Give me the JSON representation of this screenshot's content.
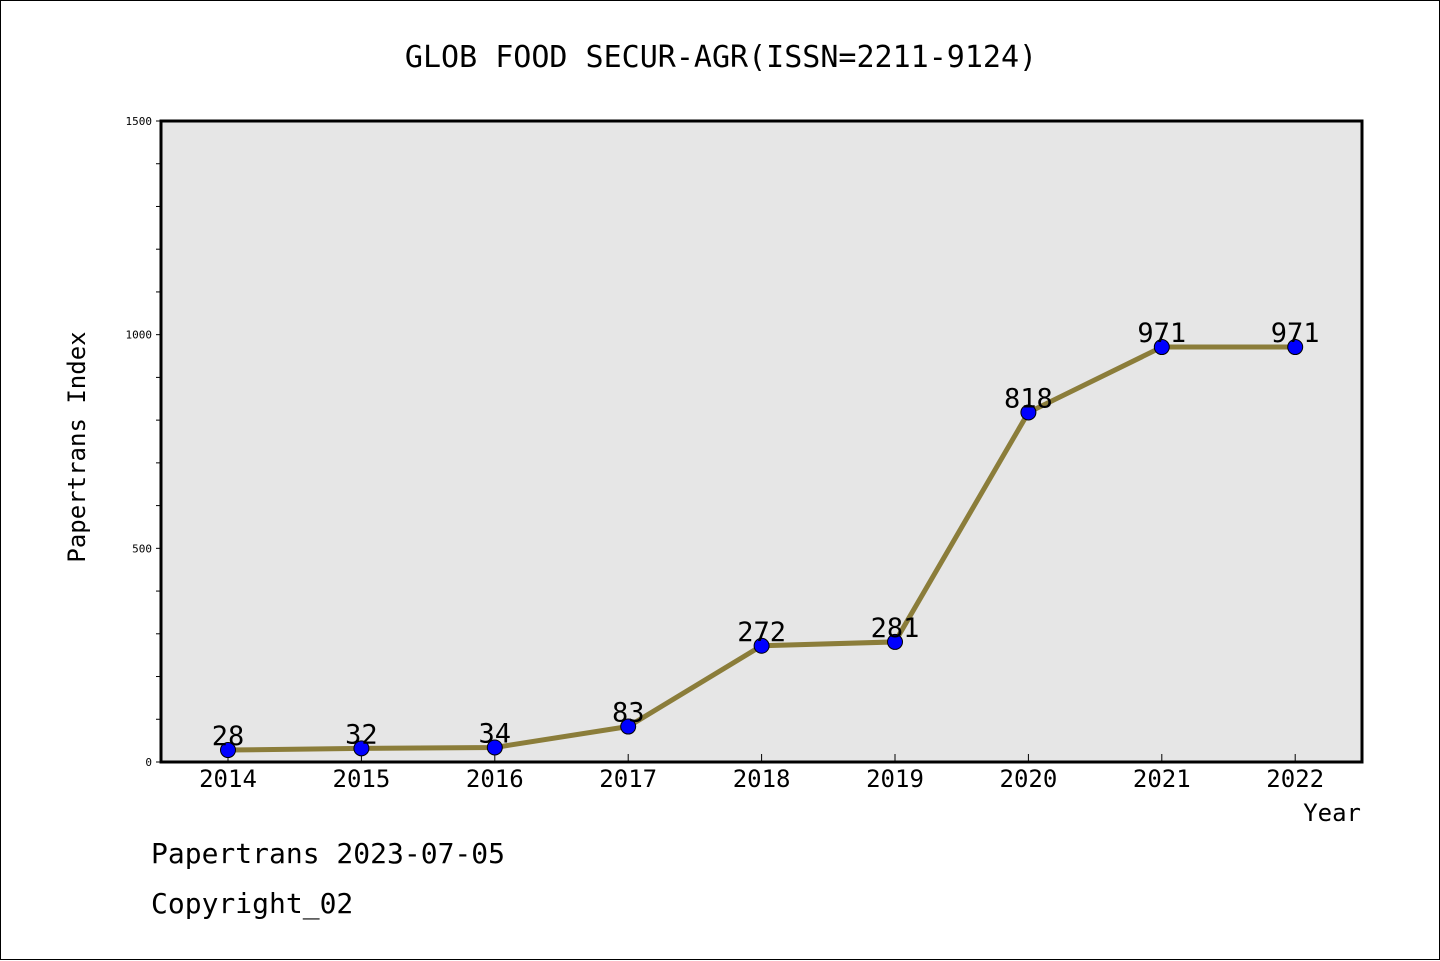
{
  "chart_data": {
    "type": "line",
    "title": "GLOB FOOD SECUR-AGR(ISSN=2211-9124)",
    "xlabel": "Year",
    "ylabel": "Papertrans Index",
    "categories": [
      "2014",
      "2015",
      "2016",
      "2017",
      "2018",
      "2019",
      "2020",
      "2021",
      "2022"
    ],
    "series": [
      {
        "values": [
          28,
          32,
          34,
          83,
          272,
          281,
          818,
          971,
          971
        ]
      }
    ],
    "ylim": [
      0,
      1500
    ],
    "yticks": [
      0,
      500,
      1000,
      1500
    ],
    "grid": false,
    "colors": {
      "line": "#8b7d3a",
      "marker": "#0000ff",
      "plot_bg": "#e6e6e6"
    },
    "data_labels": true
  },
  "footer": {
    "line1": "Papertrans 2023-07-05",
    "line2": "Copyright_02"
  }
}
